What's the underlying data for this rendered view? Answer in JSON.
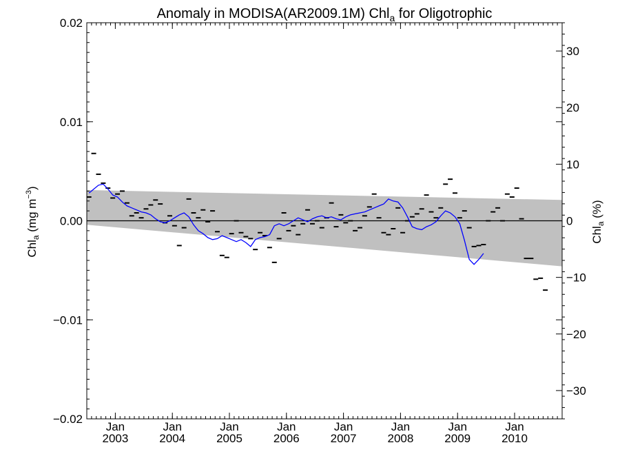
{
  "chart_data": {
    "type": "line",
    "title": {
      "prefix": "Anomaly in MODISA(AR2009.1M) Chl",
      "subscript": "a",
      "suffix": " for Oligotrophic"
    },
    "ylabel_left": {
      "base": "Chl",
      "subscript": "a",
      "unit_prefix": " (mg m",
      "unit_superscript": "−3",
      "unit_suffix": ")"
    },
    "ylabel_right": {
      "base": "Chl",
      "subscript": "a",
      "unit": " (%)"
    },
    "x_range": [
      "2002-07-01",
      "2010-11-01"
    ],
    "y_left_range": [
      -0.02,
      0.02
    ],
    "y_right_range": [
      -35,
      35
    ],
    "y_left_ticks": [
      {
        "value": -0.02,
        "label": "−0.02"
      },
      {
        "value": -0.01,
        "label": "−0.01"
      },
      {
        "value": 0.0,
        "label": "0.00"
      },
      {
        "value": 0.01,
        "label": "0.01"
      },
      {
        "value": 0.02,
        "label": "0.02"
      }
    ],
    "y_right_ticks": [
      {
        "value": -30,
        "label": "−30"
      },
      {
        "value": -20,
        "label": "−20"
      },
      {
        "value": -10,
        "label": "−10"
      },
      {
        "value": 0,
        "label": "0"
      },
      {
        "value": 10,
        "label": "10"
      },
      {
        "value": 20,
        "label": "20"
      },
      {
        "value": 30,
        "label": "30"
      }
    ],
    "x_ticks": [
      {
        "date": "2003-01-01",
        "month": "Jan",
        "year": "2003"
      },
      {
        "date": "2004-01-01",
        "month": "Jan",
        "year": "2004"
      },
      {
        "date": "2005-01-01",
        "month": "Jan",
        "year": "2005"
      },
      {
        "date": "2006-01-01",
        "month": "Jan",
        "year": "2006"
      },
      {
        "date": "2007-01-01",
        "month": "Jan",
        "year": "2007"
      },
      {
        "date": "2008-01-01",
        "month": "Jan",
        "year": "2008"
      },
      {
        "date": "2009-01-01",
        "month": "Jan",
        "year": "2009"
      },
      {
        "date": "2010-01-01",
        "month": "Jan",
        "year": "2010"
      }
    ],
    "grid": false,
    "zero_line": true,
    "envelope": {
      "upper": [
        [
          "2002-07-01",
          0.0031
        ],
        [
          "2010-11-01",
          0.0021
        ]
      ],
      "lower": [
        [
          "2002-07-01",
          -0.0004
        ],
        [
          "2010-11-01",
          -0.0046
        ]
      ],
      "color": "#c0c0c0"
    },
    "monthly_anomaly": {
      "color": "#000000",
      "points": [
        [
          "2002-07",
          0.0024
        ],
        [
          "2002-08",
          0.0068
        ],
        [
          "2002-09",
          0.0047
        ],
        [
          "2002-10",
          0.0038
        ],
        [
          "2002-11",
          0.0033
        ],
        [
          "2002-12",
          0.0023
        ],
        [
          "2003-01",
          0.0027
        ],
        [
          "2003-02",
          0.003
        ],
        [
          "2003-03",
          0.0018
        ],
        [
          "2003-04",
          0.0005
        ],
        [
          "2003-05",
          0.0008
        ],
        [
          "2003-06",
          0.0003
        ],
        [
          "2003-07",
          0.0012
        ],
        [
          "2003-08",
          0.0016
        ],
        [
          "2003-09",
          0.0021
        ],
        [
          "2003-10",
          0.0017
        ],
        [
          "2003-11",
          -0.0002
        ],
        [
          "2003-12",
          0.0005
        ],
        [
          "2004-01",
          -0.0005
        ],
        [
          "2004-02",
          -0.0025
        ],
        [
          "2004-03",
          -0.0007
        ],
        [
          "2004-04",
          0.0022
        ],
        [
          "2004-05",
          0.0008
        ],
        [
          "2004-06",
          0.0003
        ],
        [
          "2004-07",
          0.0011
        ],
        [
          "2004-08",
          -0.0001
        ],
        [
          "2004-09",
          0.001
        ],
        [
          "2004-10",
          -0.0011
        ],
        [
          "2004-11",
          -0.0035
        ],
        [
          "2004-12",
          -0.0037
        ],
        [
          "2005-01",
          -0.0013
        ],
        [
          "2005-02",
          0.0
        ],
        [
          "2005-03",
          -0.0012
        ],
        [
          "2005-04",
          -0.0016
        ],
        [
          "2005-05",
          -0.0018
        ],
        [
          "2005-06",
          -0.0029
        ],
        [
          "2005-07",
          -0.0012
        ],
        [
          "2005-08",
          -0.0015
        ],
        [
          "2005-09",
          -0.0027
        ],
        [
          "2005-10",
          -0.0042
        ],
        [
          "2005-11",
          -0.0018
        ],
        [
          "2005-12",
          0.0008
        ],
        [
          "2006-01",
          -0.001
        ],
        [
          "2006-02",
          -0.0005
        ],
        [
          "2006-03",
          -0.0014
        ],
        [
          "2006-04",
          -0.0003
        ],
        [
          "2006-05",
          0.0011
        ],
        [
          "2006-06",
          -0.0003
        ],
        [
          "2006-07",
          0.0
        ],
        [
          "2006-08",
          -0.0007
        ],
        [
          "2006-09",
          0.0003
        ],
        [
          "2006-10",
          0.0018
        ],
        [
          "2006-11",
          -0.0006
        ],
        [
          "2006-12",
          0.0006
        ],
        [
          "2007-01",
          -0.0002
        ],
        [
          "2007-02",
          0.0
        ],
        [
          "2007-03",
          -0.001
        ],
        [
          "2007-04",
          -0.0007
        ],
        [
          "2007-05",
          0.0005
        ],
        [
          "2007-06",
          0.0014
        ],
        [
          "2007-07",
          0.0027
        ],
        [
          "2007-08",
          0.0003
        ],
        [
          "2007-09",
          -0.0012
        ],
        [
          "2007-10",
          -0.0014
        ],
        [
          "2007-11",
          -0.0008
        ],
        [
          "2007-12",
          0.0013
        ],
        [
          "2008-01",
          -0.0012
        ],
        [
          "2008-02",
          0.0
        ],
        [
          "2008-03",
          0.0004
        ],
        [
          "2008-04",
          0.0007
        ],
        [
          "2008-05",
          0.0012
        ],
        [
          "2008-06",
          0.0026
        ],
        [
          "2008-07",
          0.0009
        ],
        [
          "2008-08",
          0.0003
        ],
        [
          "2008-09",
          0.0013
        ],
        [
          "2008-10",
          0.0037
        ],
        [
          "2008-11",
          0.0042
        ],
        [
          "2008-12",
          0.0028
        ],
        [
          "2009-01",
          0.0003
        ],
        [
          "2009-02",
          0.001
        ],
        [
          "2009-03",
          -0.0007
        ],
        [
          "2009-04",
          -0.0026
        ],
        [
          "2009-05",
          -0.0025
        ],
        [
          "2009-06",
          -0.0024
        ],
        [
          "2009-07",
          0.0
        ],
        [
          "2009-08",
          0.0009
        ],
        [
          "2009-09",
          0.0013
        ],
        [
          "2009-10",
          0.0
        ],
        [
          "2009-11",
          0.0027
        ],
        [
          "2009-12",
          0.0024
        ],
        [
          "2010-01",
          0.0033
        ],
        [
          "2010-02",
          0.0002
        ],
        [
          "2010-03",
          -0.0038
        ],
        [
          "2010-04",
          -0.0038
        ],
        [
          "2010-05",
          -0.0059
        ],
        [
          "2010-06",
          -0.0058
        ],
        [
          "2010-07",
          -0.007
        ]
      ]
    },
    "smoothed_anomaly": {
      "color": "#0000ff",
      "points": [
        [
          "2002-07",
          0.0028
        ],
        [
          "2002-08",
          0.0032
        ],
        [
          "2002-09",
          0.0036
        ],
        [
          "2002-10",
          0.0037
        ],
        [
          "2002-11",
          0.0032
        ],
        [
          "2002-12",
          0.0026
        ],
        [
          "2003-01",
          0.0024
        ],
        [
          "2003-02",
          0.0019
        ],
        [
          "2003-03",
          0.0015
        ],
        [
          "2003-04",
          0.0013
        ],
        [
          "2003-05",
          0.0011
        ],
        [
          "2003-06",
          0.0009
        ],
        [
          "2003-07",
          0.0008
        ],
        [
          "2003-08",
          0.0006
        ],
        [
          "2003-09",
          0.0002
        ],
        [
          "2003-10",
          -0.0001
        ],
        [
          "2003-11",
          -0.0002
        ],
        [
          "2003-12",
          0.0
        ],
        [
          "2004-01",
          0.0003
        ],
        [
          "2004-02",
          0.0006
        ],
        [
          "2004-03",
          0.0008
        ],
        [
          "2004-04",
          0.0004
        ],
        [
          "2004-05",
          -0.0004
        ],
        [
          "2004-06",
          -0.001
        ],
        [
          "2004-07",
          -0.0013
        ],
        [
          "2004-08",
          -0.0017
        ],
        [
          "2004-09",
          -0.0019
        ],
        [
          "2004-10",
          -0.0018
        ],
        [
          "2004-11",
          -0.0015
        ],
        [
          "2004-12",
          -0.0017
        ],
        [
          "2005-01",
          -0.0019
        ],
        [
          "2005-02",
          -0.0021
        ],
        [
          "2005-03",
          -0.0019
        ],
        [
          "2005-04",
          -0.0022
        ],
        [
          "2005-05",
          -0.0026
        ],
        [
          "2005-06",
          -0.0019
        ],
        [
          "2005-07",
          -0.0017
        ],
        [
          "2005-08",
          -0.0016
        ],
        [
          "2005-09",
          -0.0014
        ],
        [
          "2005-10",
          -0.0005
        ],
        [
          "2005-11",
          -0.0003
        ],
        [
          "2005-12",
          -0.0005
        ],
        [
          "2006-01",
          -0.0003
        ],
        [
          "2006-02",
          0.0
        ],
        [
          "2006-03",
          0.0003
        ],
        [
          "2006-04",
          0.0001
        ],
        [
          "2006-05",
          -0.0001
        ],
        [
          "2006-06",
          0.0002
        ],
        [
          "2006-07",
          0.0004
        ],
        [
          "2006-08",
          0.0005
        ],
        [
          "2006-09",
          0.0003
        ],
        [
          "2006-10",
          0.0004
        ],
        [
          "2006-11",
          0.0002
        ],
        [
          "2006-12",
          0.0001
        ],
        [
          "2007-01",
          0.0004
        ],
        [
          "2007-02",
          0.0006
        ],
        [
          "2007-03",
          0.0007
        ],
        [
          "2007-04",
          0.0008
        ],
        [
          "2007-05",
          0.0009
        ],
        [
          "2007-06",
          0.0011
        ],
        [
          "2007-07",
          0.0013
        ],
        [
          "2007-08",
          0.0015
        ],
        [
          "2007-09",
          0.0017
        ],
        [
          "2007-10",
          0.0022
        ],
        [
          "2007-11",
          0.002
        ],
        [
          "2007-12",
          0.0019
        ],
        [
          "2008-01",
          0.0013
        ],
        [
          "2008-02",
          0.0004
        ],
        [
          "2008-03",
          -0.0006
        ],
        [
          "2008-04",
          -0.0008
        ],
        [
          "2008-05",
          -0.0009
        ],
        [
          "2008-06",
          -0.0006
        ],
        [
          "2008-07",
          -0.0004
        ],
        [
          "2008-08",
          -0.0001
        ],
        [
          "2008-09",
          0.0005
        ],
        [
          "2008-10",
          0.001
        ],
        [
          "2008-11",
          0.0008
        ],
        [
          "2008-12",
          0.0004
        ],
        [
          "2009-01",
          -0.0003
        ],
        [
          "2009-02",
          -0.002
        ],
        [
          "2009-03",
          -0.0039
        ],
        [
          "2009-04",
          -0.0044
        ],
        [
          "2009-05",
          -0.0039
        ],
        [
          "2009-06",
          -0.0033
        ]
      ]
    }
  }
}
